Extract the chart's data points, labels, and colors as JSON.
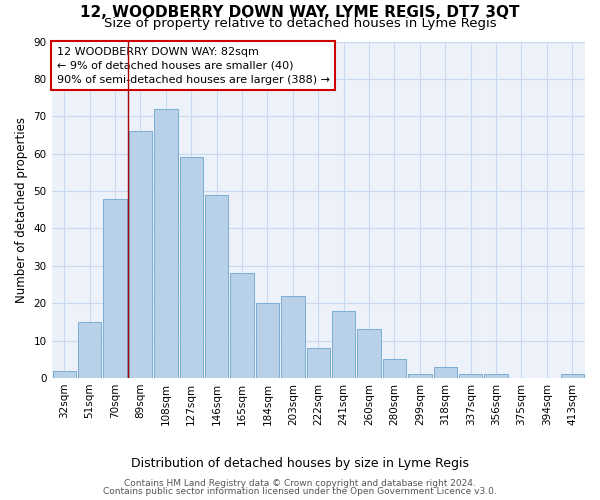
{
  "title": "12, WOODBERRY DOWN WAY, LYME REGIS, DT7 3QT",
  "subtitle": "Size of property relative to detached houses in Lyme Regis",
  "xlabel": "Distribution of detached houses by size in Lyme Regis",
  "ylabel": "Number of detached properties",
  "categories": [
    "32sqm",
    "51sqm",
    "70sqm",
    "89sqm",
    "108sqm",
    "127sqm",
    "146sqm",
    "165sqm",
    "184sqm",
    "203sqm",
    "222sqm",
    "241sqm",
    "260sqm",
    "280sqm",
    "299sqm",
    "318sqm",
    "337sqm",
    "356sqm",
    "375sqm",
    "394sqm",
    "413sqm"
  ],
  "values": [
    2,
    15,
    48,
    66,
    72,
    59,
    49,
    28,
    20,
    22,
    8,
    18,
    13,
    5,
    1,
    3,
    1,
    1,
    0,
    0,
    1
  ],
  "bar_color": "#b8d0e8",
  "bar_edgecolor": "#7aadd4",
  "bar_linewidth": 0.7,
  "vline_x": 2.5,
  "vline_color": "#aa0000",
  "annotation_text": "12 WOODBERRY DOWN WAY: 82sqm\n← 9% of detached houses are smaller (40)\n90% of semi-detached houses are larger (388) →",
  "annotation_box_edgecolor": "#cc0000",
  "annotation_box_facecolor": "white",
  "ylim": [
    0,
    90
  ],
  "yticks": [
    0,
    10,
    20,
    30,
    40,
    50,
    60,
    70,
    80,
    90
  ],
  "grid_color": "#c8d8ee",
  "background_color": "#edf2fa",
  "footer_line1": "Contains HM Land Registry data © Crown copyright and database right 2024.",
  "footer_line2": "Contains public sector information licensed under the Open Government Licence v3.0.",
  "title_fontsize": 11,
  "subtitle_fontsize": 9.5,
  "xlabel_fontsize": 9,
  "ylabel_fontsize": 8.5,
  "tick_fontsize": 7.5,
  "footer_fontsize": 6.5
}
